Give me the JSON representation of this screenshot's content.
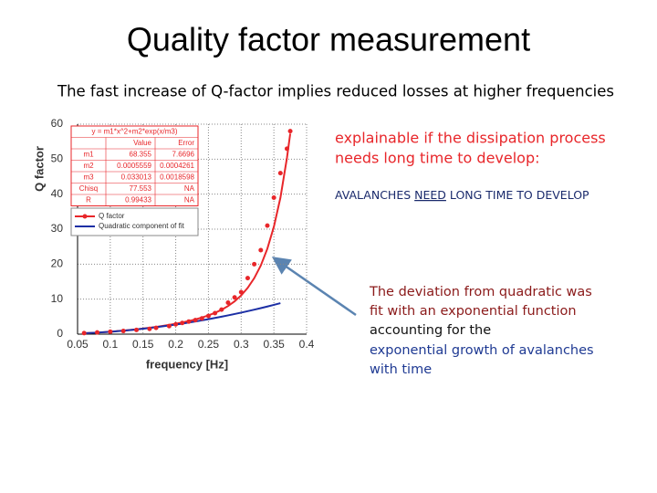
{
  "slide": {
    "title": "Quality factor measurement",
    "subtitle": "The fast increase of Q-factor implies reduced losses at higher frequencies",
    "explain": [
      "explainable if the dissipation process",
      "needs long time to develop:"
    ],
    "avalanches": [
      "AVALANCHES",
      "NEED",
      "LONG TIME TO DEVELOP"
    ],
    "note": [
      "The deviation from quadratic was",
      "fit with an exponential function",
      "accounting for the",
      "exponential growth of avalanches",
      "with time"
    ]
  },
  "fit_table": {
    "equation": "y = m1*x^2+m2*exp(x/m3)",
    "header": [
      "Value",
      "Error"
    ],
    "rows": [
      [
        "m1",
        "68.355",
        "7.6696"
      ],
      [
        "m2",
        "0.0005559",
        "0.0004261"
      ],
      [
        "m3",
        "0.033013",
        "0.0018598"
      ],
      [
        "Chisq",
        "77.553",
        "NA"
      ],
      [
        "R",
        "0.99433",
        "NA"
      ]
    ]
  },
  "chart_data": {
    "type": "scatter",
    "x_label": "frequency [Hz]",
    "y_label": "Q factor",
    "x": [
      0.06,
      0.08,
      0.1,
      0.12,
      0.14,
      0.16,
      0.17,
      0.19,
      0.2,
      0.21,
      0.22,
      0.23,
      0.24,
      0.25,
      0.26,
      0.27,
      0.28,
      0.29,
      0.3,
      0.31,
      0.32,
      0.33,
      0.34,
      0.35,
      0.36,
      0.37,
      0.375
    ],
    "series": [
      {
        "name": "Q factor",
        "color": "#e8262a",
        "values": [
          0.3,
          0.5,
          0.7,
          0.9,
          1.2,
          1.5,
          1.8,
          2.3,
          2.8,
          3.2,
          3.6,
          4,
          4.5,
          5.2,
          6,
          7,
          9,
          10.5,
          12,
          16,
          20,
          24,
          31,
          39,
          46,
          53,
          58
        ]
      },
      {
        "color": "#e8262a",
        "values": [
          0.25,
          0.44,
          0.7,
          1.01,
          1.38,
          1.82,
          2.07,
          2.64,
          2.97,
          3.34,
          3.74,
          4.21,
          4.74,
          5.35,
          6.08,
          6.96,
          8.04,
          9.38,
          11.06,
          13.23,
          16,
          19.6,
          24.4,
          30.7,
          39,
          50.4,
          57.3
        ]
      },
      {
        "name": "Quadratic component of fit",
        "color": "#1c2fa5",
        "values": [
          0.25,
          0.44,
          0.68,
          0.98,
          1.34,
          1.75,
          1.98,
          2.47,
          2.73,
          3.01,
          3.31,
          3.62,
          3.94,
          4.27,
          4.62,
          4.98,
          5.36,
          5.75,
          6.15,
          6.57,
          7,
          7.44,
          7.9,
          8.37,
          8.86,
          null,
          null
        ]
      }
    ],
    "xlim": [
      0.05,
      0.4
    ],
    "ylim": [
      0,
      60
    ],
    "xticks": [
      0.05,
      0.1,
      0.15,
      0.2,
      0.25,
      0.3,
      0.35,
      0.4
    ],
    "yticks": [
      0,
      10,
      20,
      30,
      40,
      50,
      60
    ],
    "grid": true
  }
}
